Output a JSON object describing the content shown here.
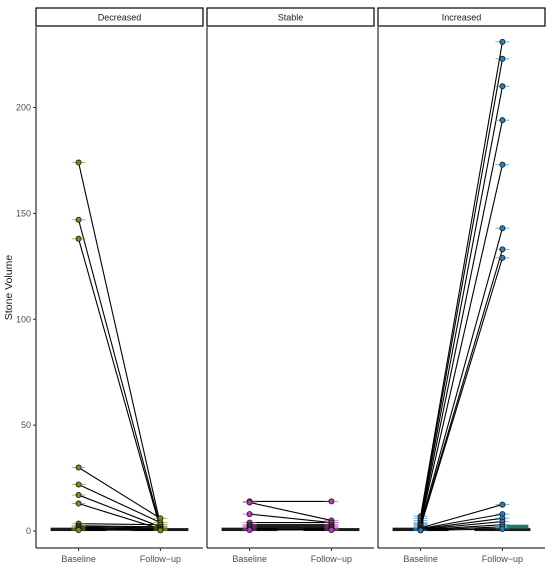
{
  "chart_data": {
    "type": "line",
    "ylabel": "Stone Volume",
    "xlabel": "",
    "ylim": [
      -8,
      238
    ],
    "y_ticks": [
      0,
      50,
      100,
      150,
      200
    ],
    "y_tick_labels": [
      "0",
      "50",
      "100",
      "150",
      "200"
    ],
    "categories": [
      "Baseline",
      "Follow−up"
    ],
    "grid": false,
    "legend": "none",
    "panels": [
      {
        "name": "Decreased",
        "color": "#7a8c1e",
        "pairs": [
          [
            174,
            3
          ],
          [
            147,
            2
          ],
          [
            138,
            1
          ],
          [
            30,
            6
          ],
          [
            22,
            4
          ],
          [
            17,
            2
          ],
          [
            13,
            1
          ],
          [
            3.5,
            3
          ],
          [
            2.5,
            2
          ],
          [
            2,
            1.5
          ],
          [
            1.5,
            1
          ],
          [
            1,
            0.6
          ],
          [
            0.8,
            0.5
          ],
          [
            0.5,
            0.3
          ]
        ]
      },
      {
        "name": "Stable",
        "color": "#b43fb4",
        "pairs": [
          [
            14,
            14
          ],
          [
            13.5,
            5
          ],
          [
            8,
            4
          ],
          [
            4,
            4
          ],
          [
            3,
            3
          ],
          [
            2.5,
            2.5
          ],
          [
            2,
            2
          ],
          [
            1.5,
            1.5
          ],
          [
            1,
            1
          ],
          [
            0.8,
            0.8
          ],
          [
            0.5,
            0.5
          ]
        ]
      },
      {
        "name": "Increased",
        "color": "#2a7fb8",
        "pairs": [
          [
            7,
            231
          ],
          [
            6,
            223
          ],
          [
            5,
            210
          ],
          [
            4,
            194
          ],
          [
            3.5,
            173
          ],
          [
            3,
            143
          ],
          [
            2.5,
            133
          ],
          [
            2,
            129
          ],
          [
            1.5,
            12.5
          ],
          [
            1.2,
            8
          ],
          [
            1,
            6
          ],
          [
            0.8,
            4.5
          ],
          [
            0.6,
            3
          ],
          [
            0.4,
            2
          ],
          [
            0.3,
            1
          ]
        ]
      }
    ]
  }
}
